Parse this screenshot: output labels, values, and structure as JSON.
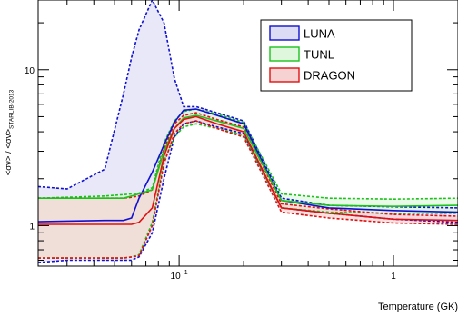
{
  "chart_data": {
    "type": "line",
    "title": "",
    "xlabel": "Temperature (GK)",
    "ylabel_main": "<σν> / <σν>",
    "ylabel_sub": "STARLIB-2013",
    "x_scale": "log",
    "y_scale": "log",
    "xlim": [
      0.022,
      2.0
    ],
    "ylim": [
      0.55,
      28
    ],
    "x_ticks": [
      {
        "value": 0.1,
        "base": "10",
        "exp": "−1"
      },
      {
        "value": 1,
        "base": "1",
        "exp": ""
      }
    ],
    "y_ticks": [
      {
        "value": 1,
        "label": "1"
      },
      {
        "value": 10,
        "label": "10"
      }
    ],
    "grid": false,
    "legend_position": "top-right",
    "series": [
      {
        "name": "LUNA",
        "color": "#1010d0",
        "fill": "#dcdcf5",
        "x": [
          0.022,
          0.03,
          0.045,
          0.055,
          0.06,
          0.065,
          0.075,
          0.085,
          0.095,
          0.105,
          0.12,
          0.15,
          0.2,
          0.3,
          0.5,
          1.0,
          2.0
        ],
        "median": [
          1.06,
          1.07,
          1.08,
          1.08,
          1.12,
          1.5,
          2.2,
          3.3,
          4.6,
          5.5,
          5.6,
          5.1,
          4.5,
          1.45,
          1.3,
          1.25,
          1.22
        ],
        "upper": [
          1.78,
          1.72,
          2.3,
          7.0,
          12.0,
          18.0,
          28.0,
          20.0,
          8.8,
          5.8,
          5.8,
          5.3,
          4.7,
          1.5,
          1.35,
          1.32,
          1.3
        ],
        "lower": [
          0.58,
          0.6,
          0.6,
          0.6,
          0.6,
          0.63,
          0.9,
          2.0,
          3.7,
          4.5,
          4.7,
          4.3,
          3.9,
          1.3,
          1.2,
          1.1,
          1.05
        ]
      },
      {
        "name": "TUNL",
        "color": "#1cc21c",
        "fill": "#dff7dc",
        "x": [
          0.022,
          0.03,
          0.045,
          0.055,
          0.06,
          0.065,
          0.075,
          0.085,
          0.095,
          0.105,
          0.12,
          0.15,
          0.2,
          0.3,
          0.5,
          1.0,
          2.0
        ],
        "median": [
          1.5,
          1.5,
          1.5,
          1.5,
          1.55,
          1.6,
          1.7,
          3.0,
          4.2,
          4.9,
          5.1,
          4.7,
          4.2,
          1.45,
          1.35,
          1.33,
          1.35
        ],
        "upper": [
          1.5,
          1.52,
          1.55,
          1.58,
          1.6,
          1.62,
          1.75,
          3.4,
          4.7,
          5.4,
          5.6,
          5.2,
          4.6,
          1.6,
          1.5,
          1.48,
          1.5
        ],
        "lower": [
          0.62,
          0.62,
          0.62,
          0.62,
          0.63,
          0.65,
          1.05,
          2.6,
          3.7,
          4.3,
          4.5,
          4.2,
          3.8,
          1.3,
          1.22,
          1.2,
          1.2
        ]
      },
      {
        "name": "DRAGON",
        "color": "#e01010",
        "fill": "#f7d2d2",
        "x": [
          0.022,
          0.03,
          0.045,
          0.055,
          0.06,
          0.065,
          0.075,
          0.085,
          0.095,
          0.105,
          0.12,
          0.15,
          0.2,
          0.3,
          0.5,
          1.0,
          2.0
        ],
        "median": [
          1.02,
          1.02,
          1.02,
          1.02,
          1.02,
          1.05,
          1.3,
          2.8,
          4.2,
          4.8,
          5.0,
          4.5,
          4.0,
          1.3,
          1.2,
          1.1,
          1.08
        ],
        "upper": [
          1.5,
          1.5,
          1.5,
          1.5,
          1.52,
          1.55,
          1.7,
          3.1,
          4.5,
          5.1,
          5.3,
          4.8,
          4.3,
          1.38,
          1.28,
          1.18,
          1.15
        ],
        "lower": [
          0.62,
          0.62,
          0.62,
          0.62,
          0.63,
          0.64,
          1.0,
          2.5,
          3.9,
          4.5,
          4.7,
          4.2,
          3.7,
          1.22,
          1.12,
          1.04,
          1.02
        ]
      }
    ]
  }
}
